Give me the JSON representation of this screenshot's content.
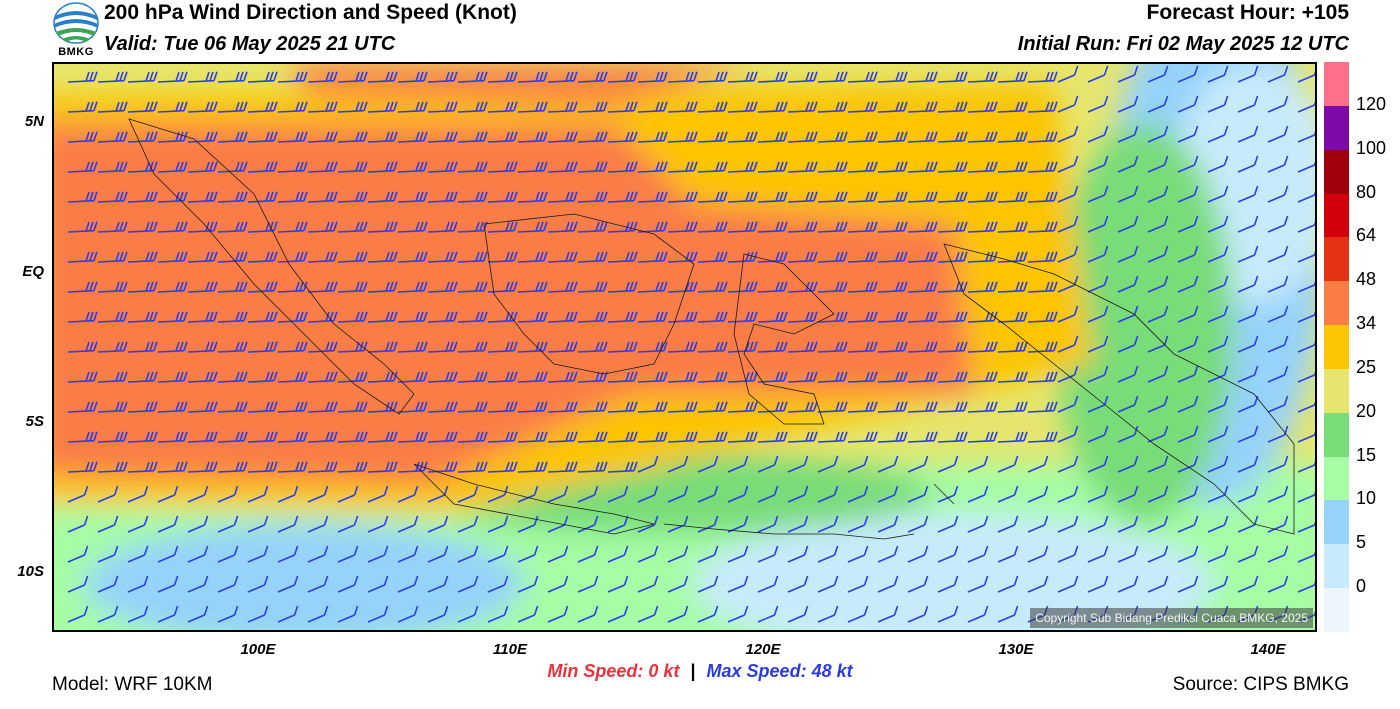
{
  "header": {
    "logo_text": "BMKG",
    "title": "200 hPa Wind Direction and Speed (Knot)",
    "valid": "Valid: Tue 06 May 2025 21 UTC",
    "forecast_hour": "Forecast Hour: +105",
    "initial_run": "Initial Run: Fri 02 May 2025 12 UTC"
  },
  "map": {
    "lat_labels": [
      "5N",
      "EQ",
      "5S",
      "10S"
    ],
    "lon_labels": [
      "100E",
      "110E",
      "120E",
      "130E",
      "140E"
    ],
    "copyright": "Copyright Sub Bidang Prediksi Cuaca BMKG, 2025",
    "barb_color": "#2a3fe6"
  },
  "colorbar": {
    "labels": [
      "120",
      "100",
      "80",
      "64",
      "48",
      "34",
      "25",
      "20",
      "15",
      "10",
      "5",
      "0"
    ],
    "colors": [
      "#ff6e8a",
      "#7d0aa6",
      "#a0000a",
      "#d1000a",
      "#e63214",
      "#fa7d46",
      "#fcc503",
      "#e6e66e",
      "#78dc78",
      "#a6fda6",
      "#96d2fa",
      "#c8ebfc",
      "#eef6fd"
    ]
  },
  "footer": {
    "min_label": "Min Speed:",
    "min_value": "0 kt",
    "separator": "|",
    "max_label": "Max Speed:",
    "max_value": "48 kt",
    "model": "Model: WRF 10KM",
    "source": "Source: CIPS BMKG"
  }
}
